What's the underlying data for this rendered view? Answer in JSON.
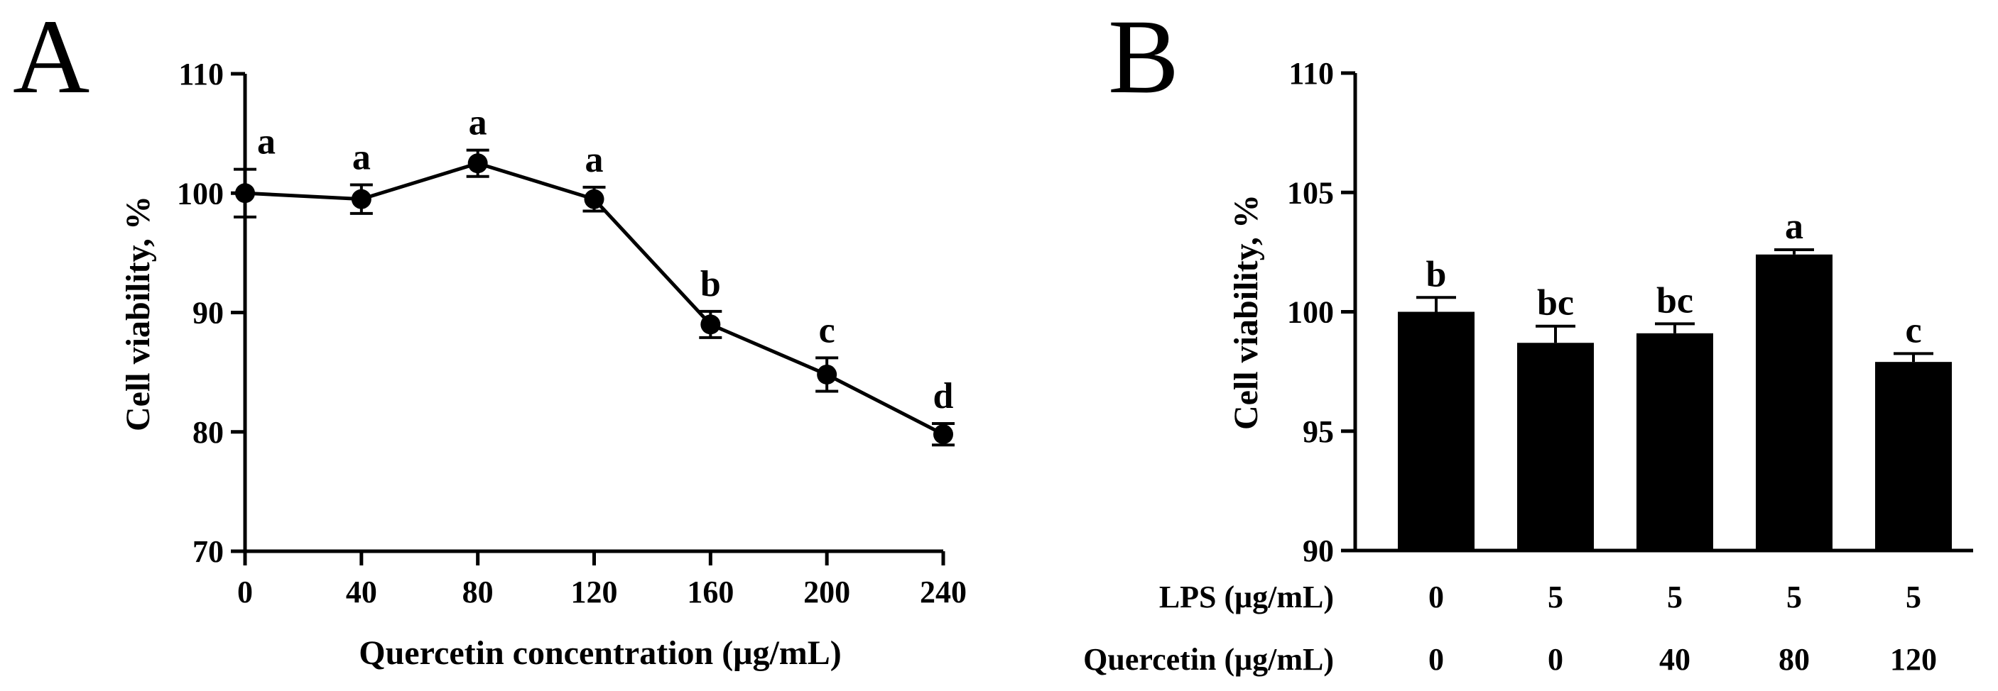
{
  "chart_data": [
    {
      "panel": "A",
      "type": "line",
      "xlabel": "Quercetin concentration (μg/mL)",
      "ylabel": "Cell viability, %",
      "xlim": [
        0,
        240
      ],
      "ylim": [
        70,
        110
      ],
      "x_ticks": [
        "0",
        "40",
        "80",
        "120",
        "160",
        "200",
        "240"
      ],
      "y_ticks": [
        "70",
        "80",
        "90",
        "100",
        "110"
      ],
      "grid": false,
      "series": [
        {
          "name": "Cell viability",
          "x": [
            0,
            40,
            80,
            120,
            160,
            200,
            240
          ],
          "values": [
            100.0,
            99.5,
            102.5,
            99.5,
            89.0,
            84.8,
            79.8
          ],
          "errors": [
            2.0,
            1.2,
            1.1,
            1.0,
            1.1,
            1.4,
            0.9
          ],
          "labels": [
            "a",
            "a",
            "a",
            "a",
            "b",
            "c",
            "d"
          ]
        }
      ]
    },
    {
      "panel": "B",
      "type": "bar",
      "ylabel": "Cell viability, %",
      "ylim": [
        90,
        110
      ],
      "y_ticks": [
        "90",
        "95",
        "100",
        "105",
        "110"
      ],
      "grid": false,
      "categories": [
        "0/0",
        "5/0",
        "5/40",
        "5/80",
        "5/120"
      ],
      "rows": [
        {
          "label": "LPS (μg/mL)",
          "values": [
            "0",
            "5",
            "5",
            "5",
            "5"
          ]
        },
        {
          "label": "Quercetin (μg/mL)",
          "values": [
            "0",
            "0",
            "40",
            "80",
            "120"
          ]
        }
      ],
      "values": [
        100.0,
        98.7,
        99.1,
        102.4,
        97.9
      ],
      "errors": [
        0.6,
        0.7,
        0.4,
        0.2,
        0.35
      ],
      "labels": [
        "b",
        "bc",
        "bc",
        "a",
        "c"
      ]
    }
  ]
}
